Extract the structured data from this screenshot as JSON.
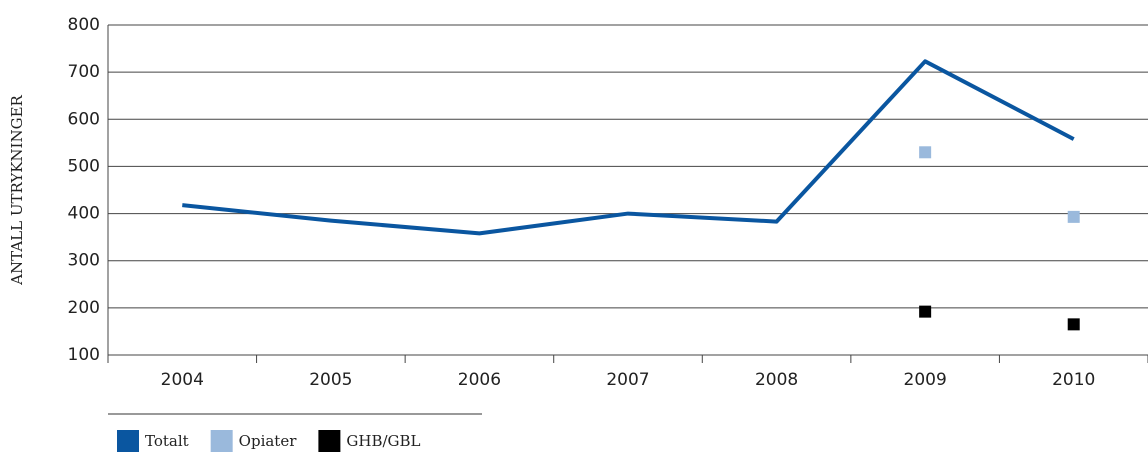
{
  "chart_data": {
    "type": "line",
    "y_label": "ANTALL UTRYKNINGER",
    "categories": [
      "2004",
      "2005",
      "2006",
      "2007",
      "2008",
      "2009",
      "2010"
    ],
    "series": [
      {
        "name": "Totalt",
        "color": "#0a56a0",
        "style": "line",
        "values": [
          418,
          385,
          358,
          400,
          383,
          723,
          558
        ]
      },
      {
        "name": "Opiater",
        "color": "#9ab9dc",
        "style": "markers",
        "values": [
          null,
          null,
          null,
          null,
          null,
          530,
          393
        ]
      },
      {
        "name": "GHB/GBL",
        "color": "#000000",
        "style": "markers",
        "values": [
          null,
          null,
          null,
          null,
          null,
          192,
          165
        ]
      }
    ],
    "ylim": [
      100,
      800
    ],
    "yticks": [
      100,
      200,
      300,
      400,
      500,
      600,
      700,
      800
    ],
    "grid": true
  }
}
